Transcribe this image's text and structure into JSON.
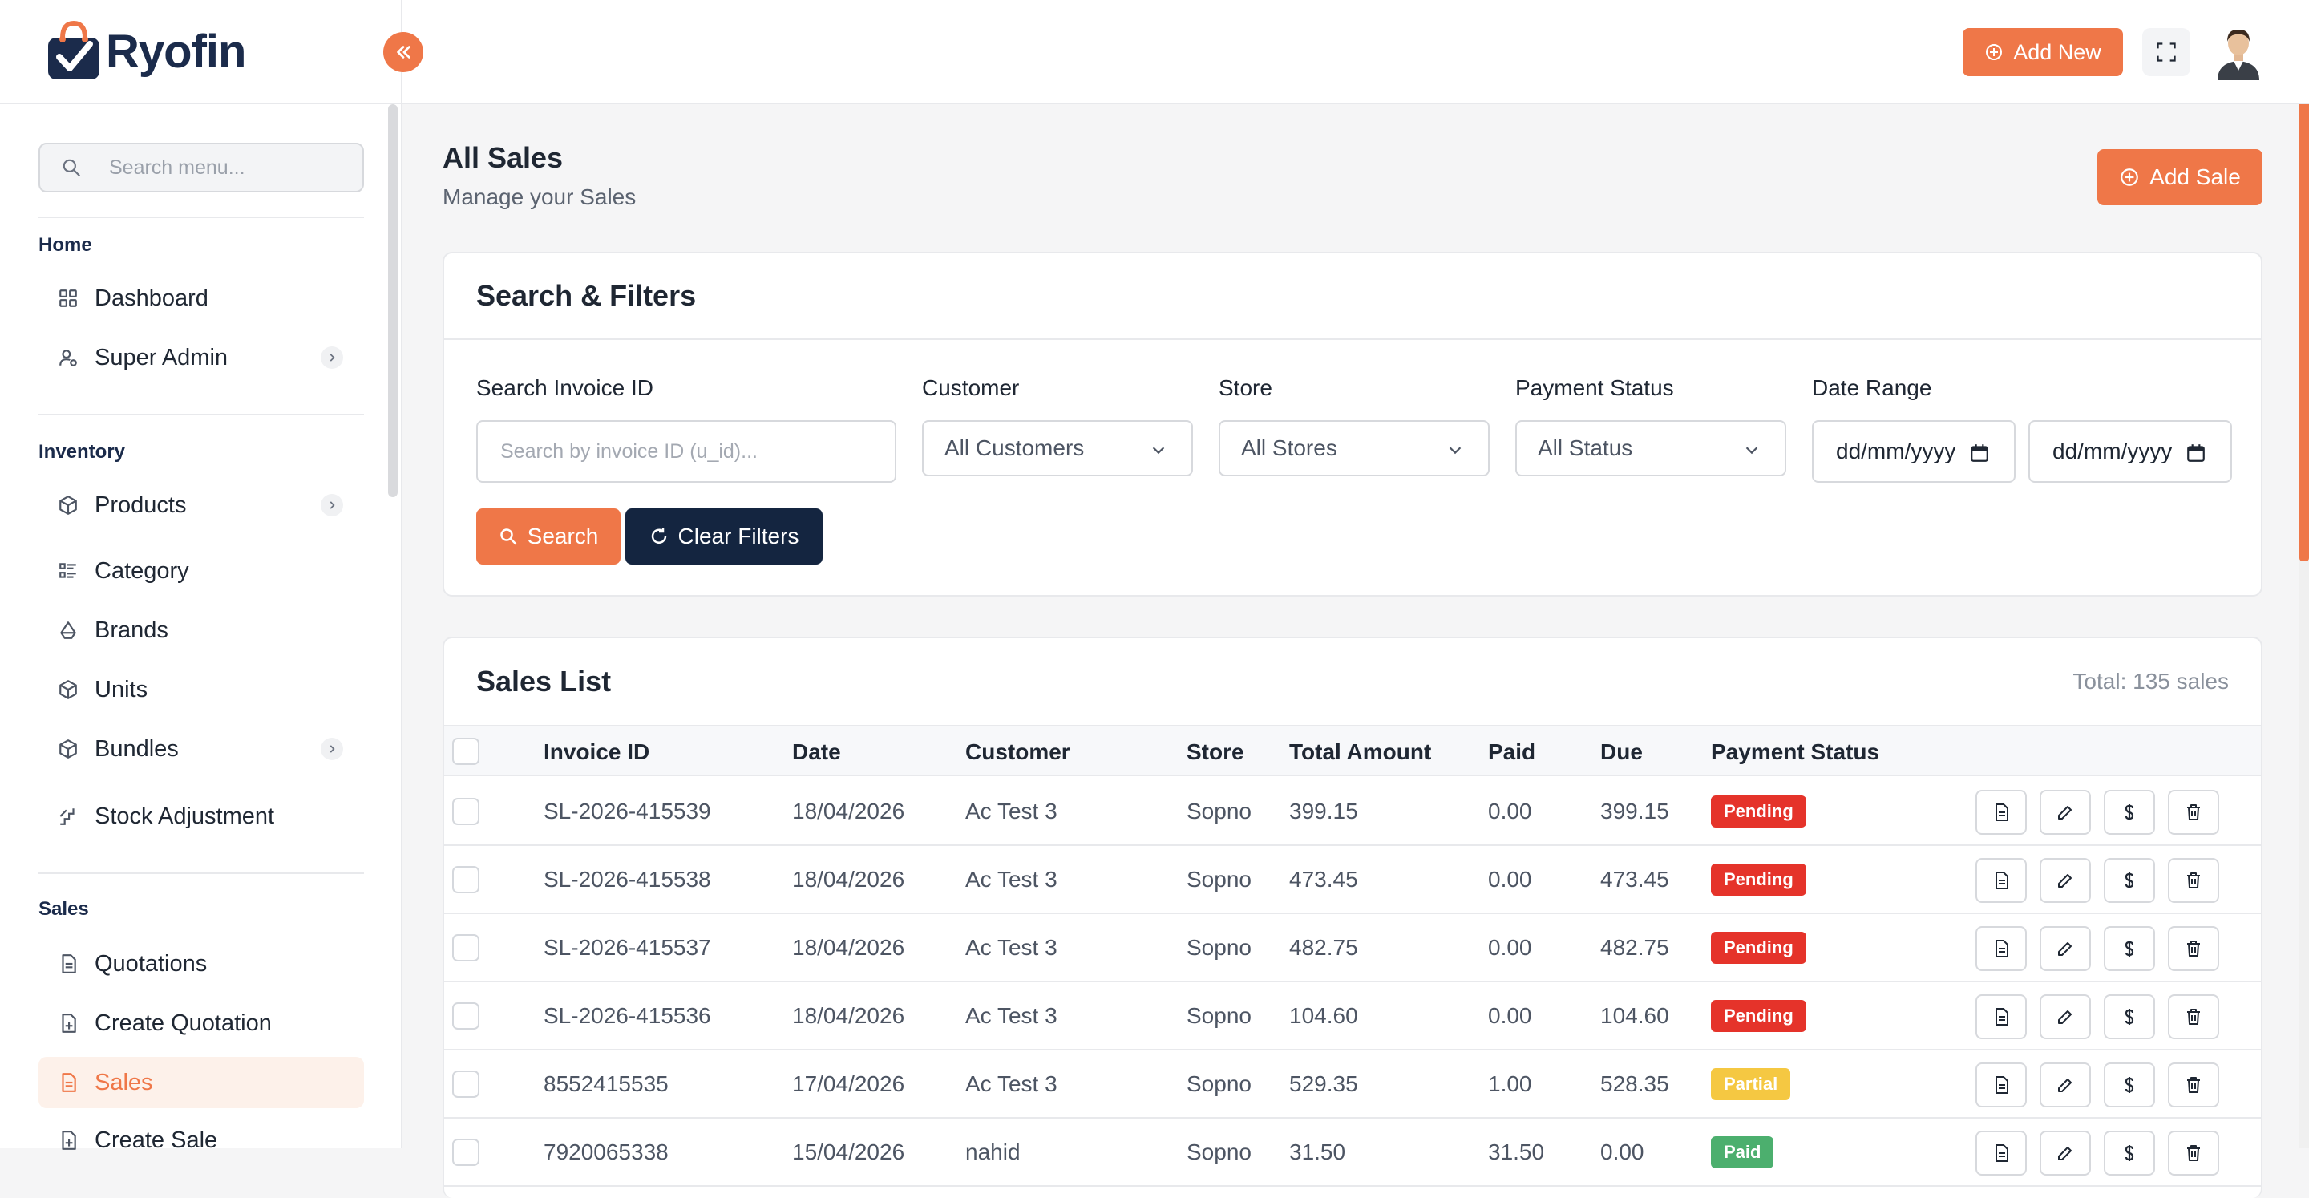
{
  "brand": {
    "name": "Ryofin",
    "accent": "#ef7748",
    "navy": "#142540"
  },
  "sidebar": {
    "search_placeholder": "Search menu...",
    "sections": {
      "home": "Home",
      "inventory": "Inventory",
      "sales": "Sales"
    },
    "items": [
      {
        "label": "Dashboard",
        "icon": "grid-icon"
      },
      {
        "label": "Super Admin",
        "icon": "user-gear-icon"
      },
      {
        "label": "Products",
        "icon": "box-icon"
      },
      {
        "label": "Category",
        "icon": "list-icon"
      },
      {
        "label": "Brands",
        "icon": "brand-icon"
      },
      {
        "label": "Units",
        "icon": "cube-icon"
      },
      {
        "label": "Bundles",
        "icon": "box-icon"
      },
      {
        "label": "Stock Adjustment",
        "icon": "stairs-icon"
      },
      {
        "label": "Quotations",
        "icon": "file-icon"
      },
      {
        "label": "Create Quotation",
        "icon": "file-plus-icon"
      },
      {
        "label": "Sales",
        "icon": "file-icon"
      },
      {
        "label": "Create Sale",
        "icon": "file-plus-icon"
      }
    ]
  },
  "topbar": {
    "add_new_label": "Add New"
  },
  "page": {
    "title": "All Sales",
    "subtitle": "Manage your Sales",
    "add_sale_label": "Add Sale"
  },
  "filters": {
    "title": "Search & Filters",
    "invoice_label": "Search Invoice ID",
    "invoice_placeholder": "Search by invoice ID (u_id)...",
    "customer_label": "Customer",
    "customer_value": "All Customers",
    "store_label": "Store",
    "store_value": "All Stores",
    "status_label": "Payment Status",
    "status_value": "All Status",
    "date_label": "Date Range",
    "date_from": "dd/mm/yyyy",
    "date_to": "dd/mm/yyyy",
    "search_label": "Search",
    "clear_label": "Clear Filters"
  },
  "sales": {
    "title": "Sales List",
    "total": "Total: 135 sales",
    "columns": [
      "Invoice ID",
      "Date",
      "Customer",
      "Store",
      "Total Amount",
      "Paid",
      "Due",
      "Payment Status"
    ],
    "rows": [
      {
        "invoice": "SL-2026-415539",
        "date": "18/04/2026",
        "customer": "Ac Test 3",
        "store": "Sopno",
        "total": "399.15",
        "paid": "0.00",
        "due": "399.15",
        "status": "Pending",
        "status_color": "#e5332a"
      },
      {
        "invoice": "SL-2026-415538",
        "date": "18/04/2026",
        "customer": "Ac Test 3",
        "store": "Sopno",
        "total": "473.45",
        "paid": "0.00",
        "due": "473.45",
        "status": "Pending",
        "status_color": "#e5332a"
      },
      {
        "invoice": "SL-2026-415537",
        "date": "18/04/2026",
        "customer": "Ac Test 3",
        "store": "Sopno",
        "total": "482.75",
        "paid": "0.00",
        "due": "482.75",
        "status": "Pending",
        "status_color": "#e5332a"
      },
      {
        "invoice": "SL-2026-415536",
        "date": "18/04/2026",
        "customer": "Ac Test 3",
        "store": "Sopno",
        "total": "104.60",
        "paid": "0.00",
        "due": "104.60",
        "status": "Pending",
        "status_color": "#e5332a"
      },
      {
        "invoice": "8552415535",
        "date": "17/04/2026",
        "customer": "Ac Test 3",
        "store": "Sopno",
        "total": "529.35",
        "paid": "1.00",
        "due": "528.35",
        "status": "Partial",
        "status_color": "#f5c842"
      },
      {
        "invoice": "7920065338",
        "date": "15/04/2026",
        "customer": "nahid",
        "store": "Sopno",
        "total": "31.50",
        "paid": "31.50",
        "due": "0.00",
        "status": "Paid",
        "status_color": "#4caf6e"
      }
    ]
  }
}
